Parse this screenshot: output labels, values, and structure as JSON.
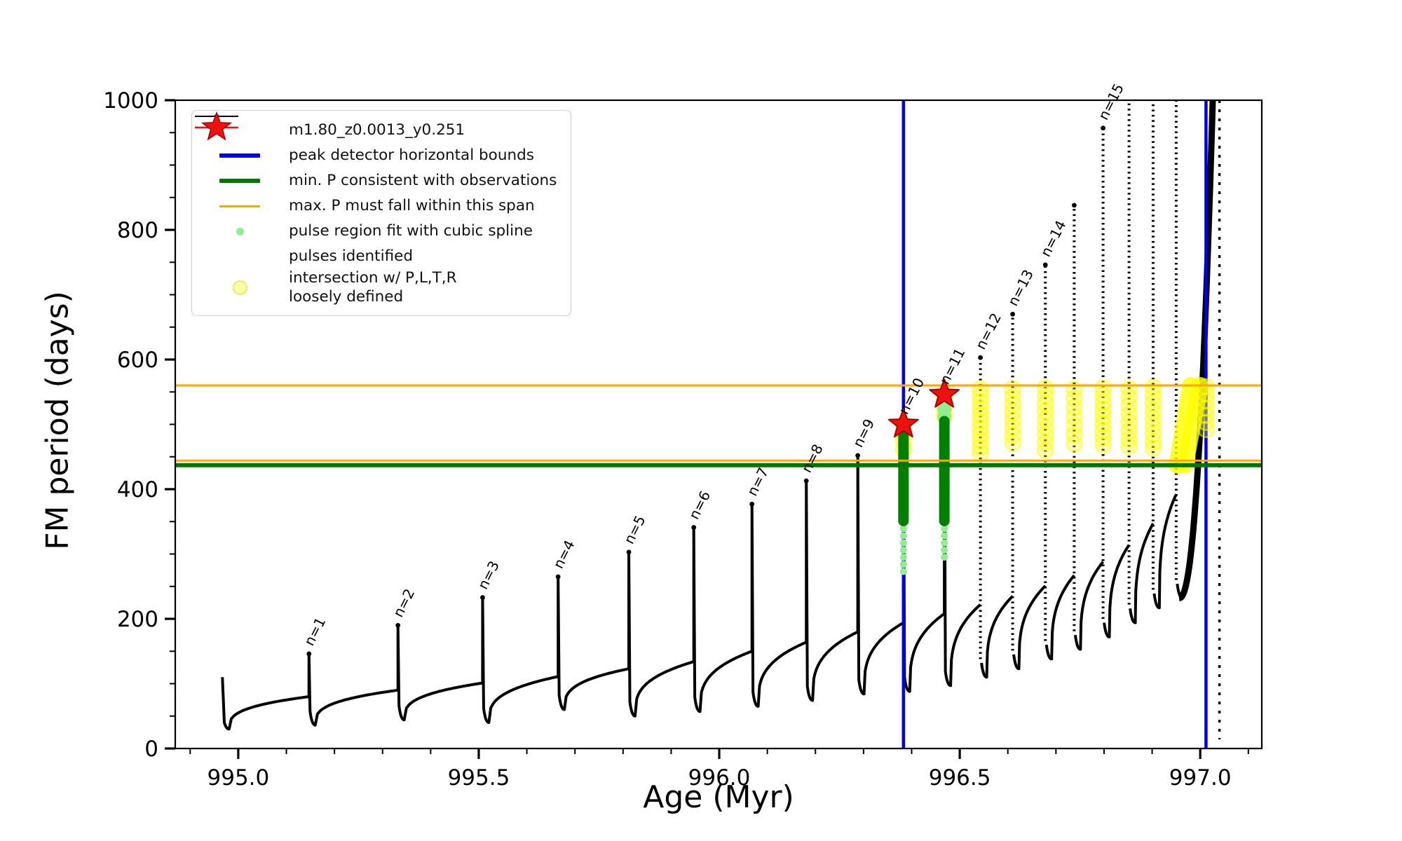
{
  "figure": {
    "xlabel": "Age (Myr)",
    "ylabel": "FM period (days)"
  },
  "legend": {
    "entries": [
      {
        "label": "m1.80_z0.0013_y0.251",
        "marker": "line-with-dot",
        "color": "#000000"
      },
      {
        "label": "peak detector horizontal bounds",
        "marker": "thick-line",
        "color": "#0000ee"
      },
      {
        "label": "min. P consistent with observations",
        "marker": "thick-line",
        "color": "#007800"
      },
      {
        "label": "max. P must fall within this span",
        "marker": "thin-line",
        "color": "#ffa500"
      },
      {
        "label": "pulse region fit with cubic spline",
        "marker": "small-dot",
        "color": "#90ee90"
      },
      {
        "label": "pulses identified",
        "marker": "star",
        "color": "#ee1111"
      },
      {
        "label": "intersection w/ P,L,T,R\nloosely defined",
        "marker": "pale-dot",
        "color": "#ffff00"
      }
    ]
  },
  "chart_data": {
    "type": "line",
    "title": "",
    "xlabel": "Age (Myr)",
    "ylabel": "FM period (days)",
    "xlim": [
      994.869,
      997.128
    ],
    "ylim": [
      0,
      1000
    ],
    "xticks": [
      995.0,
      995.5,
      996.0,
      996.5,
      997.0
    ],
    "xtick_labels": [
      "995.0",
      "995.5",
      "996.0",
      "996.5",
      "997.0"
    ],
    "xminor_step": 0.1,
    "yticks": [
      0,
      200,
      400,
      600,
      800,
      1000
    ],
    "ytick_labels": [
      "0",
      "200",
      "400",
      "600",
      "800",
      "1000"
    ],
    "yminor_step": 50,
    "legend_position": "upper left",
    "grid": false,
    "series_name": "m1.80_z0.0013_y0.251",
    "series": {
      "start": {
        "age": 994.967,
        "top": 110,
        "dip": 30
      },
      "cycles": [
        {
          "label": "n=1",
          "age": 995.147,
          "pre": 80,
          "peak": 146,
          "dip": 36
        },
        {
          "label": "n=2",
          "age": 995.332,
          "pre": 90,
          "peak": 190,
          "dip": 44
        },
        {
          "label": "n=3",
          "age": 995.508,
          "pre": 101,
          "peak": 233,
          "dip": 40
        },
        {
          "label": "n=4",
          "age": 995.665,
          "pre": 111,
          "peak": 265,
          "dip": 60
        },
        {
          "label": "n=5",
          "age": 995.812,
          "pre": 123,
          "peak": 303,
          "dip": 50
        },
        {
          "label": "n=6",
          "age": 995.947,
          "pre": 134,
          "peak": 341,
          "dip": 57
        },
        {
          "label": "n=7",
          "age": 996.068,
          "pre": 150,
          "peak": 377,
          "dip": 65
        },
        {
          "label": "n=8",
          "age": 996.181,
          "pre": 164,
          "peak": 413,
          "dip": 74
        },
        {
          "label": "n=9",
          "age": 996.288,
          "pre": 180,
          "peak": 452,
          "dip": 84
        },
        {
          "label": "n=10",
          "age": 996.383,
          "pre": 194,
          "peak": 503,
          "dip": 88
        },
        {
          "label": "n=11",
          "age": 996.468,
          "pre": 208,
          "peak": 549,
          "dip": 97
        },
        {
          "label": "n=12",
          "age": 996.543,
          "pre": 222,
          "peak": 603,
          "dip": 110
        },
        {
          "label": "n=13",
          "age": 996.61,
          "pre": 235,
          "peak": 670,
          "dip": 123
        },
        {
          "label": "n=14",
          "age": 996.678,
          "pre": 251,
          "peak": 746,
          "dip": 138
        },
        {
          "label": "",
          "age": 996.738,
          "pre": 267,
          "peak": 838,
          "dip": 153
        },
        {
          "label": "n=15",
          "age": 996.798,
          "pre": 288,
          "peak": 957,
          "dip": 172
        },
        {
          "label": "",
          "age": 996.852,
          "pre": 314,
          "peak": 1020,
          "dip": 194
        },
        {
          "label": "",
          "age": 996.902,
          "pre": 347,
          "peak": 1020,
          "dip": 217
        },
        {
          "label": "",
          "age": 996.95,
          "pre": 392,
          "peak": 1020,
          "dip": 232
        }
      ],
      "dotted_spikes_from_peak": 600,
      "final_rise": {
        "from_age": 996.956,
        "from_value": 232,
        "to_age": 997.04,
        "to_value": 1400,
        "exponent": 2.3
      },
      "final_descent": {
        "age": 997.04,
        "from": 1000,
        "to": 14
      }
    },
    "peak_detector_bounds_x": [
      996.383,
      997.012
    ],
    "min_p_line": 437,
    "max_p_span": [
      444,
      560
    ],
    "pulses_identified": [
      {
        "label": "n=10",
        "age": 996.383,
        "period": 500
      },
      {
        "label": "n=11",
        "age": 996.468,
        "period": 546
      }
    ],
    "spline_fit": [
      {
        "age": 996.383,
        "solid_span": [
          351,
          505
        ],
        "dot_values": [
          350,
          339,
          328,
          317,
          306,
          295,
          284,
          273
        ],
        "top_dot_values": []
      },
      {
        "age": 996.468,
        "solid_span": [
          351,
          505
        ],
        "dot_values": [
          350,
          339,
          328,
          317,
          306,
          295
        ],
        "top_dot_values": [
          512,
          524,
          536,
          547
        ]
      }
    ],
    "intersections": {
      "columns": [
        {
          "age": 996.383,
          "values": [
            500,
            487,
            474,
            461
          ]
        },
        {
          "age": 996.468,
          "values": [
            549,
            537,
            525,
            513
          ]
        },
        {
          "age": 996.543,
          "values": [
            555,
            545,
            535,
            525,
            515,
            505,
            495,
            485,
            475,
            465,
            455
          ]
        },
        {
          "age": 996.61,
          "values": [
            555,
            543,
            531,
            519,
            507,
            495,
            483,
            471
          ]
        },
        {
          "age": 996.678,
          "values": [
            556,
            544,
            532,
            520,
            508,
            496,
            484,
            472,
            460
          ]
        },
        {
          "age": 996.738,
          "values": [
            554,
            540,
            526,
            512,
            498,
            484,
            470
          ]
        },
        {
          "age": 996.798,
          "values": [
            556,
            545,
            534,
            523,
            512,
            501,
            490,
            479,
            468
          ]
        },
        {
          "age": 996.852,
          "values": [
            555,
            542,
            529,
            516,
            503,
            490,
            477,
            466
          ]
        },
        {
          "age": 996.902,
          "values": [
            557,
            545,
            533,
            521,
            509,
            497,
            485,
            473,
            463
          ]
        },
        {
          "age": 997.012,
          "values": [
            558,
            547,
            536,
            525,
            514,
            503,
            492
          ]
        }
      ],
      "streaks": [
        {
          "x1": 996.952,
          "y1": 437,
          "x2": 996.98,
          "y2": 560
        },
        {
          "x1": 996.968,
          "y1": 437,
          "x2": 997.0,
          "y2": 560
        }
      ]
    },
    "spike_label_rotation_deg": -63,
    "colors": {
      "series": "#000000",
      "peak_bounds": "#0000ee",
      "min_p": "#007800",
      "max_p": "#ffa500",
      "spline_solid": "#008000",
      "spline_dots": "#90ee90",
      "pulse_fill": "#ee1111",
      "pulse_edge": "#aa0000",
      "intersection": "#ffff00"
    }
  }
}
